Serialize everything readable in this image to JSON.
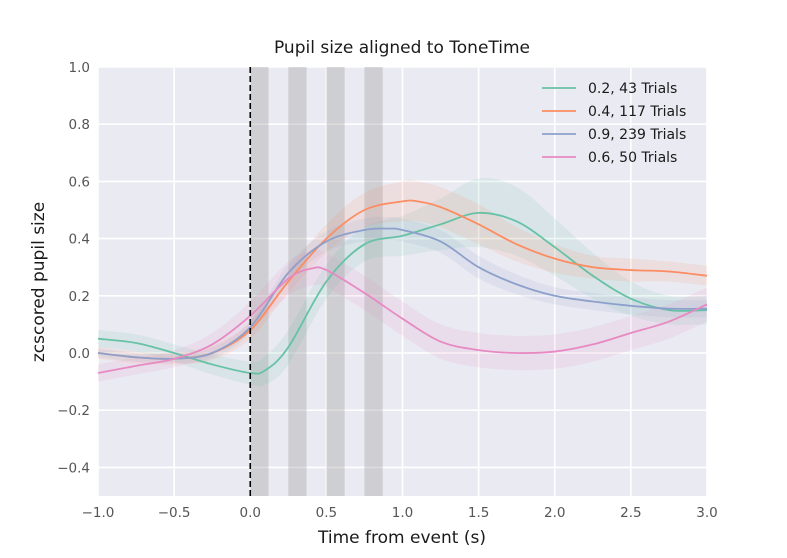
{
  "chart_data": {
    "type": "line",
    "title": "Pupil size aligned to ToneTime",
    "xlabel": "Time from event (s)",
    "ylabel": "zcscored pupil size",
    "xlim": [
      -1.0,
      3.0
    ],
    "ylim": [
      -0.5,
      1.0
    ],
    "xticks": [
      -1.0,
      -0.5,
      0.0,
      0.5,
      1.0,
      1.5,
      2.0,
      2.5,
      3.0
    ],
    "xtick_labels": [
      "−1.0",
      "−0.5",
      "0.0",
      "0.5",
      "1.0",
      "1.5",
      "2.0",
      "2.5",
      "3.0"
    ],
    "yticks": [
      -0.4,
      -0.2,
      0.0,
      0.2,
      0.4,
      0.6,
      0.8,
      1.0
    ],
    "ytick_labels": [
      "−0.4",
      "−0.2",
      "0.0",
      "0.2",
      "0.4",
      "0.6",
      "0.8",
      "1.0"
    ],
    "grid": true,
    "legend_position": "top-right",
    "event_line": {
      "x": 0.0,
      "style": "dashed",
      "color": "#000000"
    },
    "shaded_windows": [
      [
        0.0,
        0.12
      ],
      [
        0.25,
        0.37
      ],
      [
        0.5,
        0.62
      ],
      [
        0.75,
        0.87
      ]
    ],
    "series": [
      {
        "name": "0.2, 43 Trials",
        "color": "#66c2a5",
        "x": [
          -1.0,
          -0.75,
          -0.5,
          -0.25,
          0.0,
          0.1,
          0.25,
          0.5,
          0.75,
          1.0,
          1.25,
          1.5,
          1.75,
          2.0,
          2.25,
          2.5,
          2.75,
          3.0
        ],
        "y": [
          0.05,
          0.035,
          0.0,
          -0.04,
          -0.07,
          -0.06,
          0.02,
          0.25,
          0.38,
          0.41,
          0.45,
          0.49,
          0.46,
          0.37,
          0.27,
          0.19,
          0.15,
          0.15
        ],
        "err": [
          0.03,
          0.03,
          0.03,
          0.035,
          0.04,
          0.05,
          0.06,
          0.06,
          0.06,
          0.07,
          0.09,
          0.12,
          0.12,
          0.1,
          0.08,
          0.06,
          0.05,
          0.05
        ]
      },
      {
        "name": "0.4, 117 Trials",
        "color": "#fc8d62",
        "x": [
          -1.0,
          -0.75,
          -0.5,
          -0.25,
          0.0,
          0.25,
          0.5,
          0.75,
          1.0,
          1.1,
          1.25,
          1.5,
          1.75,
          2.0,
          2.25,
          2.5,
          2.75,
          3.0
        ],
        "y": [
          0.0,
          -0.015,
          -0.02,
          0.0,
          0.08,
          0.25,
          0.4,
          0.5,
          0.53,
          0.53,
          0.51,
          0.45,
          0.38,
          0.33,
          0.3,
          0.29,
          0.285,
          0.27
        ],
        "err": [
          0.02,
          0.02,
          0.02,
          0.025,
          0.03,
          0.04,
          0.05,
          0.06,
          0.07,
          0.07,
          0.07,
          0.07,
          0.06,
          0.05,
          0.04,
          0.04,
          0.035,
          0.035
        ]
      },
      {
        "name": "0.9, 239 Trials",
        "color": "#8da0cb",
        "x": [
          -1.0,
          -0.75,
          -0.5,
          -0.25,
          0.0,
          0.25,
          0.5,
          0.75,
          0.9,
          1.0,
          1.25,
          1.5,
          1.75,
          2.0,
          2.25,
          2.5,
          2.75,
          3.0
        ],
        "y": [
          0.0,
          -0.015,
          -0.02,
          0.0,
          0.09,
          0.28,
          0.39,
          0.43,
          0.435,
          0.43,
          0.39,
          0.3,
          0.24,
          0.2,
          0.18,
          0.165,
          0.155,
          0.155
        ],
        "err": [
          0.015,
          0.015,
          0.015,
          0.02,
          0.02,
          0.03,
          0.035,
          0.04,
          0.04,
          0.04,
          0.04,
          0.04,
          0.035,
          0.03,
          0.03,
          0.03,
          0.03,
          0.03
        ]
      },
      {
        "name": "0.6, 50 Trials",
        "color": "#e78ac3",
        "x": [
          -1.0,
          -0.75,
          -0.5,
          -0.25,
          0.0,
          0.25,
          0.4,
          0.5,
          0.75,
          1.0,
          1.25,
          1.5,
          1.75,
          2.0,
          2.25,
          2.5,
          2.75,
          3.0
        ],
        "y": [
          -0.07,
          -0.045,
          -0.02,
          0.03,
          0.13,
          0.26,
          0.295,
          0.29,
          0.21,
          0.12,
          0.04,
          0.01,
          0.0,
          0.005,
          0.03,
          0.07,
          0.11,
          0.17
        ],
        "err": [
          0.03,
          0.03,
          0.03,
          0.04,
          0.05,
          0.06,
          0.06,
          0.06,
          0.06,
          0.06,
          0.06,
          0.06,
          0.06,
          0.06,
          0.06,
          0.06,
          0.06,
          0.06
        ]
      }
    ]
  }
}
